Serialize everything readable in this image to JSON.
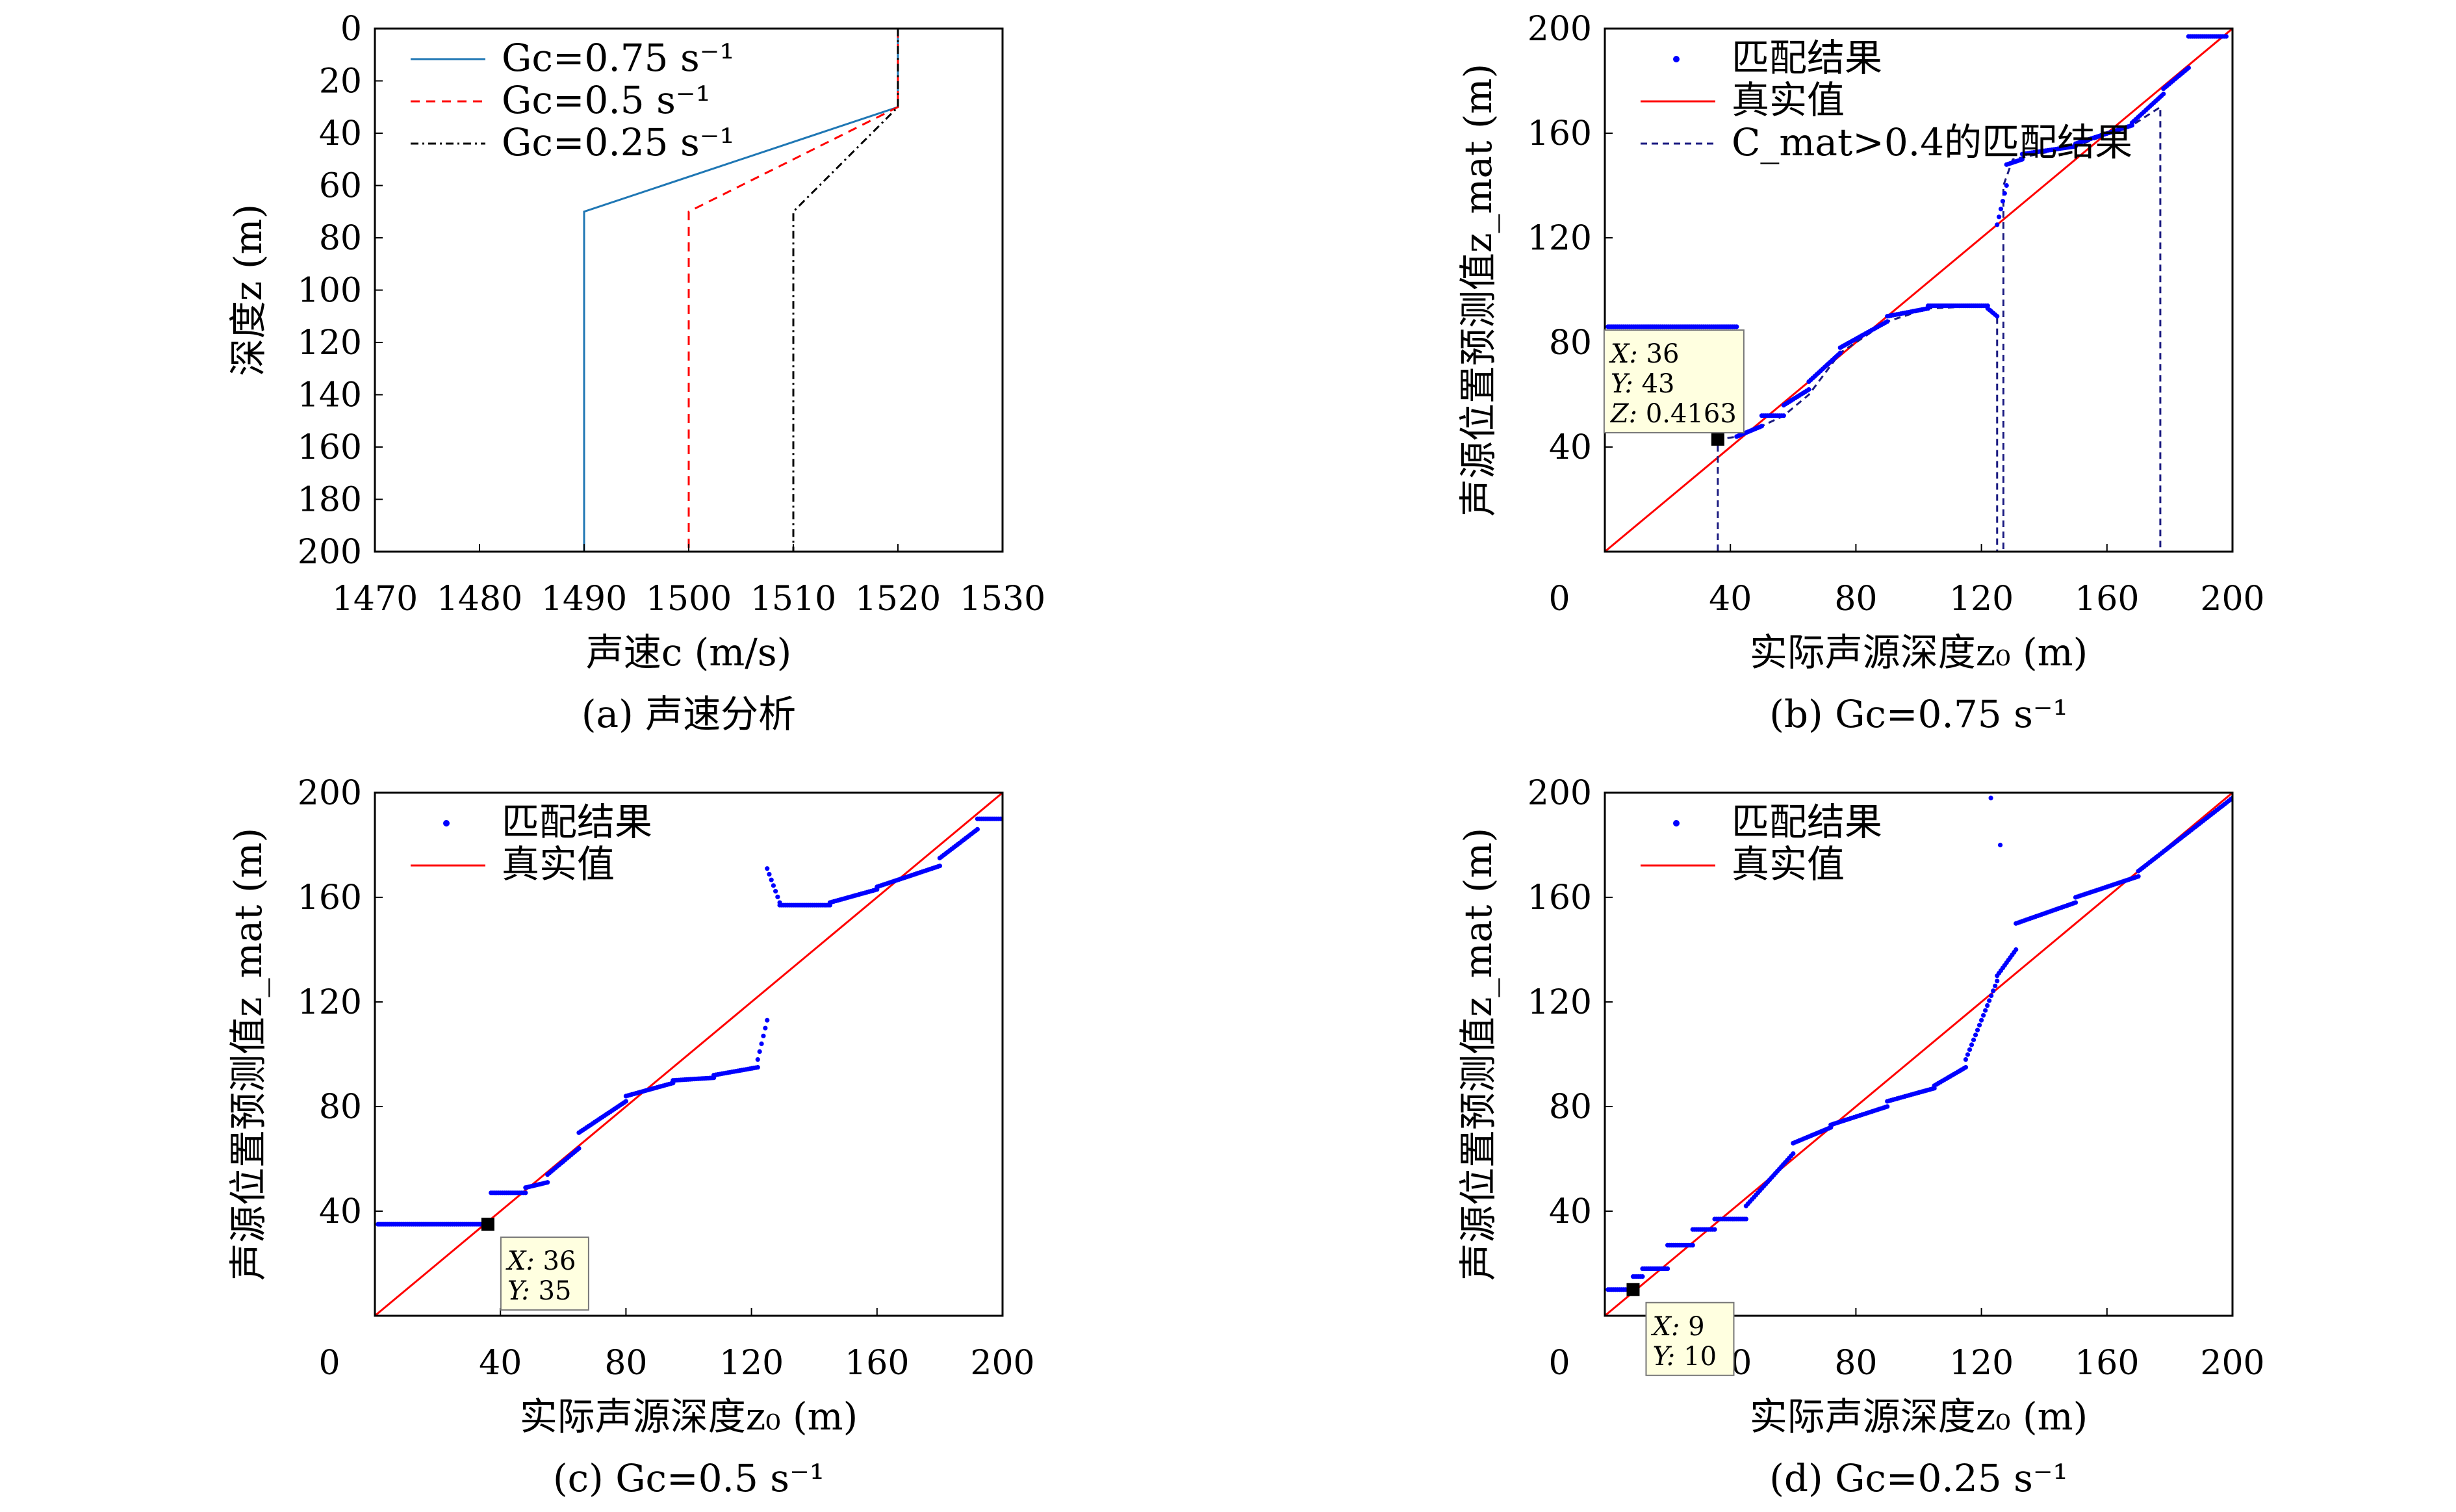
{
  "chart_data": [
    {
      "id": "a",
      "type": "line",
      "caption": "(a) 声速分析",
      "xlabel": "声速c (m/s)",
      "ylabel": "深度z (m)",
      "xlim": [
        1470,
        1530
      ],
      "ylim": [
        200,
        0
      ],
      "y_inverted": true,
      "xticks": [
        1470,
        1480,
        1490,
        1500,
        1510,
        1520,
        1530
      ],
      "yticks": [
        0,
        20,
        40,
        60,
        80,
        100,
        120,
        140,
        160,
        180,
        200
      ],
      "legend_position": "top-left",
      "series": [
        {
          "name": "Gc=0.75 s⁻¹",
          "color": "#1f77b4",
          "style": "solid",
          "x": [
            1520,
            1520,
            1490,
            1490
          ],
          "y": [
            0,
            30,
            70,
            200
          ]
        },
        {
          "name": "Gc=0.5 s⁻¹",
          "color": "#ff0000",
          "style": "dashed",
          "x": [
            1520,
            1520,
            1500,
            1500
          ],
          "y": [
            0,
            30,
            70,
            200
          ]
        },
        {
          "name": "Gc=0.25 s⁻¹",
          "color": "#000000",
          "style": "dashdot",
          "x": [
            1520,
            1520,
            1510,
            1510
          ],
          "y": [
            0,
            30,
            70,
            200
          ]
        }
      ]
    },
    {
      "id": "b",
      "type": "scatter",
      "caption": "(b) Gc=0.75 s⁻¹",
      "xlabel": "实际声源深度z₀ (m)",
      "ylabel": "声源位置预测值z_mat (m)",
      "xlim": [
        0,
        200
      ],
      "ylim": [
        0,
        200
      ],
      "xticks": [
        0,
        40,
        80,
        120,
        160,
        200
      ],
      "yticks": [
        40,
        80,
        120,
        160,
        200
      ],
      "legend_position": "top-left",
      "legend": [
        "匹配结果",
        "真实值",
        "C_mat>0.4的匹配结果"
      ],
      "true_value": {
        "x": [
          0,
          200
        ],
        "y": [
          0,
          200
        ],
        "color": "#ff0000"
      },
      "match_result_segments": [
        {
          "x0": 1,
          "x1": 42,
          "y0": 86,
          "y1": 86
        },
        {
          "x0": 42,
          "x1": 50,
          "y0": 44,
          "y1": 48
        },
        {
          "x0": 50,
          "x1": 57,
          "y0": 52,
          "y1": 52
        },
        {
          "x0": 57,
          "x1": 65,
          "y0": 56,
          "y1": 62
        },
        {
          "x0": 65,
          "x1": 75,
          "y0": 65,
          "y1": 76
        },
        {
          "x0": 75,
          "x1": 90,
          "y0": 78,
          "y1": 88
        },
        {
          "x0": 90,
          "x1": 103,
          "y0": 90,
          "y1": 93
        },
        {
          "x0": 103,
          "x1": 122,
          "y0": 94,
          "y1": 94
        },
        {
          "x0": 122,
          "x1": 125,
          "y0": 93,
          "y1": 90
        },
        {
          "x0": 125,
          "x1": 128,
          "y0": 125,
          "y1": 140
        },
        {
          "x0": 128,
          "x1": 133,
          "y0": 148,
          "y1": 150
        },
        {
          "x0": 133,
          "x1": 150,
          "y0": 152,
          "y1": 155
        },
        {
          "x0": 150,
          "x1": 168,
          "y0": 156,
          "y1": 163
        },
        {
          "x0": 168,
          "x1": 178,
          "y0": 164,
          "y1": 175
        },
        {
          "x0": 178,
          "x1": 186,
          "y0": 177,
          "y1": 185
        },
        {
          "x0": 186,
          "x1": 198,
          "y0": 197,
          "y1": 197
        }
      ],
      "threshold_curve": [
        [
          1,
          0
        ],
        [
          36,
          0
        ],
        [
          36,
          43
        ],
        [
          37,
          43
        ],
        [
          42,
          44
        ],
        [
          50,
          48
        ],
        [
          57,
          52
        ],
        [
          65,
          60
        ],
        [
          75,
          76
        ],
        [
          90,
          88
        ],
        [
          103,
          93
        ],
        [
          122,
          94
        ],
        [
          125,
          90
        ],
        [
          125,
          0
        ],
        [
          127,
          0
        ],
        [
          127,
          140
        ],
        [
          130,
          150
        ],
        [
          150,
          155
        ],
        [
          168,
          163
        ],
        [
          177,
          170
        ],
        [
          177,
          0
        ],
        [
          200,
          0
        ]
      ],
      "datatip": {
        "point": [
          36,
          43
        ],
        "X": "36",
        "Y": "43",
        "Z": "0.4163"
      }
    },
    {
      "id": "c",
      "type": "scatter",
      "caption": "(c) Gc=0.5 s⁻¹",
      "xlabel": "实际声源深度z₀ (m)",
      "ylabel": "声源位置预测值z_mat (m)",
      "xlim": [
        0,
        200
      ],
      "ylim": [
        0,
        200
      ],
      "xticks": [
        0,
        40,
        80,
        120,
        160,
        200
      ],
      "yticks": [
        40,
        80,
        120,
        160,
        200
      ],
      "legend_position": "top-left",
      "legend": [
        "匹配结果",
        "真实值"
      ],
      "true_value": {
        "x": [
          0,
          200
        ],
        "y": [
          0,
          200
        ],
        "color": "#ff0000"
      },
      "match_result_segments": [
        {
          "x0": 1,
          "x1": 36,
          "y0": 35,
          "y1": 35
        },
        {
          "x0": 37,
          "x1": 48,
          "y0": 47,
          "y1": 47
        },
        {
          "x0": 48,
          "x1": 55,
          "y0": 49,
          "y1": 51
        },
        {
          "x0": 55,
          "x1": 65,
          "y0": 54,
          "y1": 64
        },
        {
          "x0": 65,
          "x1": 80,
          "y0": 70,
          "y1": 82
        },
        {
          "x0": 80,
          "x1": 95,
          "y0": 84,
          "y1": 89
        },
        {
          "x0": 95,
          "x1": 108,
          "y0": 90,
          "y1": 91
        },
        {
          "x0": 108,
          "x1": 122,
          "y0": 92,
          "y1": 95
        },
        {
          "x0": 122,
          "x1": 125,
          "y0": 98,
          "y1": 113
        },
        {
          "x0": 125,
          "x1": 129,
          "y0": 171,
          "y1": 158
        },
        {
          "x0": 129,
          "x1": 145,
          "y0": 157,
          "y1": 157
        },
        {
          "x0": 145,
          "x1": 160,
          "y0": 158,
          "y1": 163
        },
        {
          "x0": 160,
          "x1": 180,
          "y0": 164,
          "y1": 172
        },
        {
          "x0": 180,
          "x1": 192,
          "y0": 175,
          "y1": 186
        },
        {
          "x0": 192,
          "x1": 200,
          "y0": 190,
          "y1": 190
        }
      ],
      "datatip": {
        "point": [
          36,
          35
        ],
        "X": "36",
        "Y": "35"
      }
    },
    {
      "id": "d",
      "type": "scatter",
      "caption": "(d) Gc=0.25 s⁻¹",
      "xlabel": "实际声源深度z₀ (m)",
      "ylabel": "声源位置预测值z_mat (m)",
      "xlim": [
        0,
        200
      ],
      "ylim": [
        0,
        200
      ],
      "xticks": [
        0,
        40,
        80,
        120,
        160,
        200
      ],
      "yticks": [
        40,
        80,
        120,
        160,
        200
      ],
      "legend_position": "top-left",
      "legend": [
        "匹配结果",
        "真实值"
      ],
      "true_value": {
        "x": [
          0,
          200
        ],
        "y": [
          0,
          200
        ],
        "color": "#ff0000"
      },
      "match_result_segments": [
        {
          "x0": 1,
          "x1": 9,
          "y0": 10,
          "y1": 10
        },
        {
          "x0": 9,
          "x1": 12,
          "y0": 15,
          "y1": 15
        },
        {
          "x0": 12,
          "x1": 20,
          "y0": 18,
          "y1": 18
        },
        {
          "x0": 20,
          "x1": 28,
          "y0": 27,
          "y1": 27
        },
        {
          "x0": 28,
          "x1": 35,
          "y0": 33,
          "y1": 33
        },
        {
          "x0": 35,
          "x1": 45,
          "y0": 37,
          "y1": 37
        },
        {
          "x0": 45,
          "x1": 60,
          "y0": 42,
          "y1": 62
        },
        {
          "x0": 60,
          "x1": 72,
          "y0": 66,
          "y1": 72
        },
        {
          "x0": 72,
          "x1": 90,
          "y0": 73,
          "y1": 80
        },
        {
          "x0": 90,
          "x1": 105,
          "y0": 82,
          "y1": 87
        },
        {
          "x0": 105,
          "x1": 115,
          "y0": 88,
          "y1": 95
        },
        {
          "x0": 115,
          "x1": 125,
          "y0": 98,
          "y1": 128
        },
        {
          "x0": 125,
          "x1": 131,
          "y0": 130,
          "y1": 140
        },
        {
          "x0": 131,
          "x1": 150,
          "y0": 150,
          "y1": 158
        },
        {
          "x0": 150,
          "x1": 170,
          "y0": 160,
          "y1": 168
        },
        {
          "x0": 170,
          "x1": 200,
          "y0": 170,
          "y1": 198
        }
      ],
      "outliers": [
        [
          123,
          198
        ],
        [
          126,
          180
        ]
      ],
      "datatip": {
        "point": [
          9,
          10
        ],
        "X": "9",
        "Y": "10"
      }
    }
  ]
}
